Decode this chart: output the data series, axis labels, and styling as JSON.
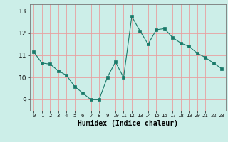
{
  "x": [
    0,
    1,
    2,
    3,
    4,
    5,
    6,
    7,
    8,
    9,
    10,
    11,
    12,
    13,
    14,
    15,
    16,
    17,
    18,
    19,
    20,
    21,
    22,
    23
  ],
  "y": [
    11.15,
    10.65,
    10.6,
    10.3,
    10.1,
    9.6,
    9.3,
    9.0,
    9.0,
    10.0,
    10.7,
    10.0,
    12.75,
    12.1,
    11.5,
    12.15,
    12.2,
    11.8,
    11.55,
    11.4,
    11.1,
    10.9,
    10.65,
    10.4
  ],
  "line_color": "#1a7a6a",
  "marker": "s",
  "marker_size": 2.5,
  "bg_color": "#cceee8",
  "grid_color": "#e8a0a0",
  "xlabel": "Humidex (Indice chaleur)",
  "xlim": [
    -0.5,
    23.5
  ],
  "ylim": [
    8.5,
    13.3
  ],
  "yticks": [
    9,
    10,
    11,
    12,
    13
  ],
  "xticks": [
    0,
    1,
    2,
    3,
    4,
    5,
    6,
    7,
    8,
    9,
    10,
    11,
    12,
    13,
    14,
    15,
    16,
    17,
    18,
    19,
    20,
    21,
    22,
    23
  ],
  "xtick_labels": [
    "0",
    "1",
    "2",
    "3",
    "4",
    "5",
    "6",
    "7",
    "8",
    "9",
    "10",
    "11",
    "12",
    "13",
    "14",
    "15",
    "16",
    "17",
    "18",
    "19",
    "20",
    "21",
    "22",
    "23"
  ]
}
